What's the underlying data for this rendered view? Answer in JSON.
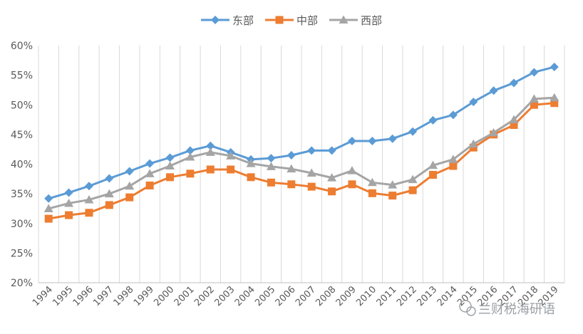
{
  "chart_data": {
    "type": "line",
    "title": "",
    "xlabel": "",
    "ylabel": "",
    "ylim": [
      0.2,
      0.6
    ],
    "y_tick_format": "percent",
    "yticks": [
      0.2,
      0.25,
      0.3,
      0.35,
      0.4,
      0.45,
      0.5,
      0.55,
      0.6
    ],
    "ytick_labels": [
      "20%",
      "25%",
      "30%",
      "35%",
      "40%",
      "45%",
      "50%",
      "55%",
      "60%"
    ],
    "grid": "vertical",
    "legend_position": "top",
    "x": [
      "1994",
      "1995",
      "1996",
      "1997",
      "1998",
      "1999",
      "2000",
      "2001",
      "2002",
      "2003",
      "2004",
      "2005",
      "2006",
      "2007",
      "2008",
      "2009",
      "2010",
      "2011",
      "2012",
      "2013",
      "2014",
      "2015",
      "2016",
      "2017",
      "2018",
      "2019"
    ],
    "series": [
      {
        "name": "东部",
        "color": "#5b9bd5",
        "marker": "diamond",
        "values": [
          0.342,
          0.352,
          0.363,
          0.376,
          0.388,
          0.401,
          0.411,
          0.423,
          0.431,
          0.42,
          0.408,
          0.41,
          0.415,
          0.423,
          0.423,
          0.439,
          0.439,
          0.443,
          0.455,
          0.474,
          0.483,
          0.505,
          0.524,
          0.537,
          0.555,
          0.564
        ]
      },
      {
        "name": "中部",
        "color": "#ed7d31",
        "marker": "square",
        "values": [
          0.308,
          0.314,
          0.318,
          0.331,
          0.344,
          0.364,
          0.378,
          0.384,
          0.391,
          0.391,
          0.378,
          0.369,
          0.366,
          0.362,
          0.354,
          0.366,
          0.351,
          0.347,
          0.356,
          0.382,
          0.397,
          0.428,
          0.45,
          0.466,
          0.5,
          0.503
        ]
      },
      {
        "name": "西部",
        "color": "#a5a5a5",
        "marker": "triangle",
        "values": [
          0.325,
          0.334,
          0.34,
          0.35,
          0.363,
          0.384,
          0.397,
          0.412,
          0.42,
          0.414,
          0.401,
          0.396,
          0.392,
          0.385,
          0.377,
          0.389,
          0.369,
          0.365,
          0.374,
          0.398,
          0.408,
          0.434,
          0.453,
          0.475,
          0.51,
          0.512
        ]
      }
    ]
  },
  "watermark": {
    "text": "兰财税海研语"
  }
}
